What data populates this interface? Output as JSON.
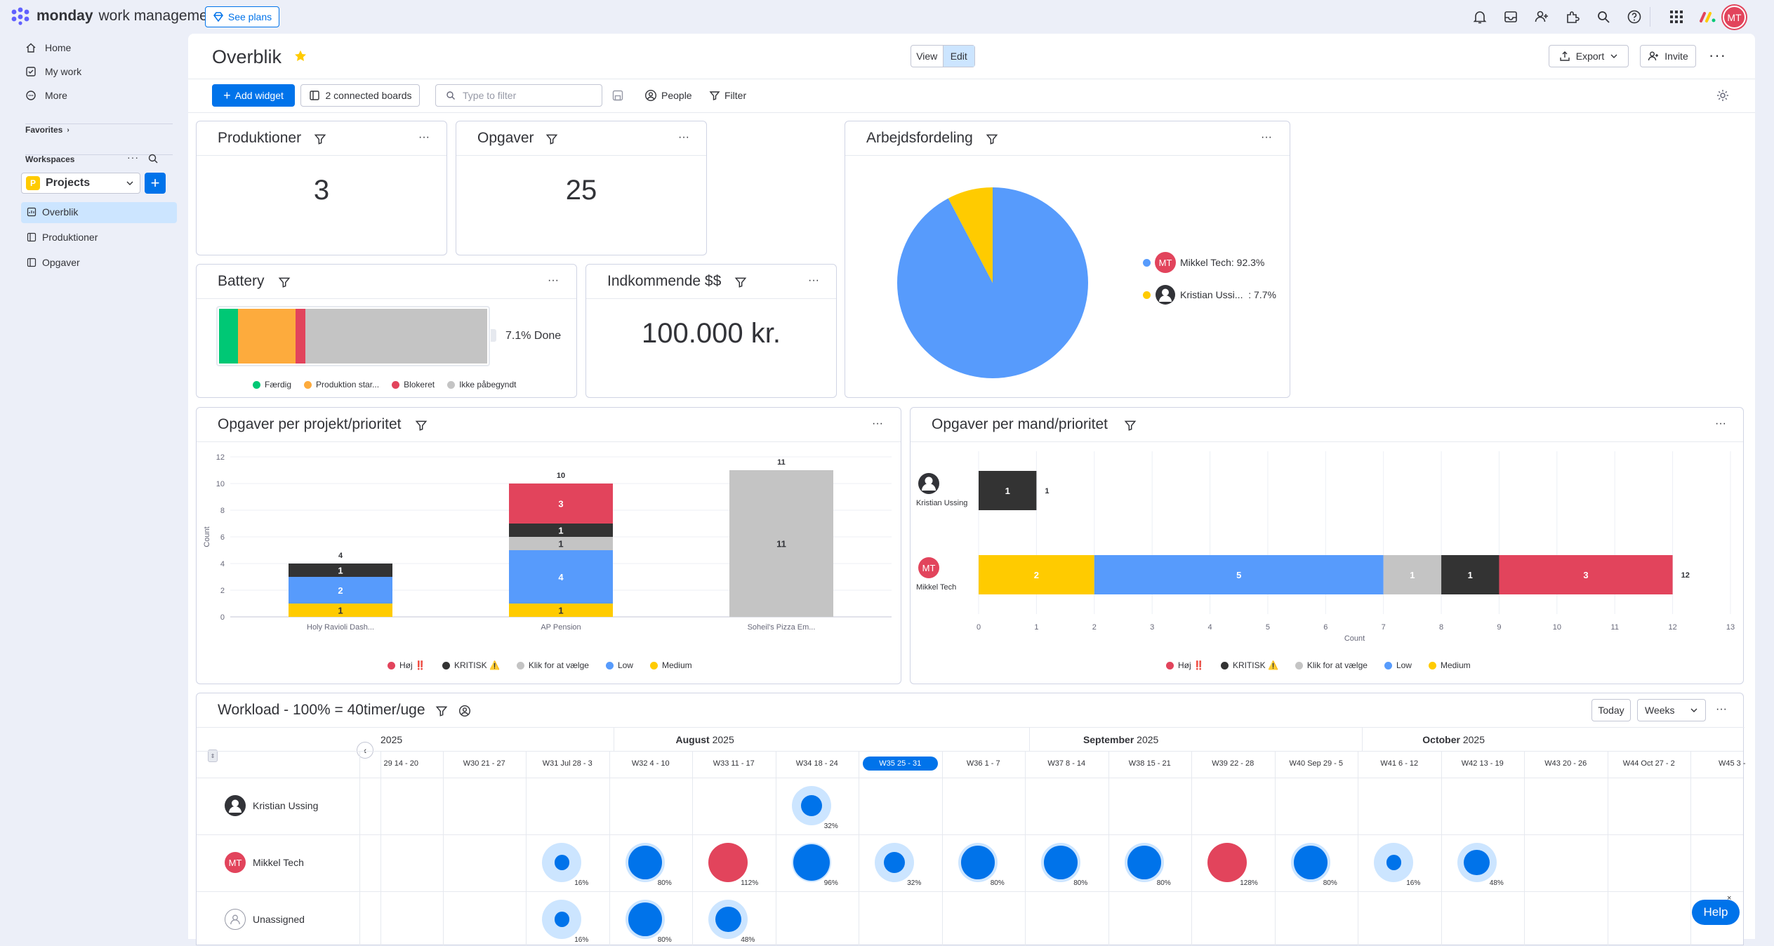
{
  "topbar": {
    "brand": "monday",
    "product": "work management",
    "see_plans": "See plans",
    "avatar_initials": "MT"
  },
  "sidebar": {
    "items": [
      {
        "label": "Home",
        "icon": "home-icon"
      },
      {
        "label": "My work",
        "icon": "checkbox-icon"
      },
      {
        "label": "More",
        "icon": "more-circle-icon"
      }
    ],
    "favorites": "Favorites",
    "workspaces": "Workspaces",
    "workspace_letter": "P",
    "workspace_name": "Projects",
    "boards": [
      {
        "label": "Overblik",
        "active": true
      },
      {
        "label": "Produktioner",
        "active": false
      },
      {
        "label": "Opgaver",
        "active": false
      }
    ]
  },
  "header": {
    "title": "Overblik",
    "view_label": "View",
    "edit_label": "Edit",
    "export_label": "Export",
    "invite_label": "Invite"
  },
  "toolbar": {
    "add_widget": "Add widget",
    "connected_boards": "2 connected boards",
    "filter_placeholder": "Type to filter",
    "people": "People",
    "filter": "Filter"
  },
  "widgets": {
    "produktioner": {
      "title": "Produktioner",
      "value": "3"
    },
    "opgaver": {
      "title": "Opgaver",
      "value": "25"
    },
    "arbejdsfordeling": {
      "title": "Arbejdsfordeling",
      "legend": [
        {
          "initials": "MT",
          "name": "Mikkel Tech: 92.3%",
          "color": "#579bfc"
        },
        {
          "initials": "",
          "name": "Kristian Ussi...  : 7.7%",
          "color": "#ffcb00"
        }
      ]
    },
    "battery": {
      "title": "Battery",
      "done_label": "7.1% Done",
      "segments": [
        {
          "label": "Færdig",
          "color": "#00c875",
          "fraction": 0.071
        },
        {
          "label": "Produktion star...",
          "color": "#fdab3d",
          "fraction": 0.214
        },
        {
          "label": "Blokeret",
          "color": "#e2445c",
          "fraction": 0.036
        },
        {
          "label": "Ikke påbegyndt",
          "color": "#c4c4c4",
          "fraction": 0.679
        }
      ]
    },
    "indkommende": {
      "title": "Indkommende $$",
      "value": "100.000 kr."
    },
    "per_projekt_title": "Opgaver per projekt/prioritet",
    "per_mand_title": "Opgaver per mand/prioritet",
    "priority_legend": [
      {
        "label": "Høj ‼️",
        "color": "#e2445c"
      },
      {
        "label": "KRITISK ⚠️",
        "color": "#333333"
      },
      {
        "label": "Klik for at vælge",
        "color": "#c4c4c4"
      },
      {
        "label": "Low",
        "color": "#579bfc"
      },
      {
        "label": "Medium",
        "color": "#ffcb00"
      }
    ],
    "workload": {
      "title": "Workload - 100% = 40timer/uge",
      "today": "Today",
      "weeks": "Weeks",
      "year_fragment": "2025",
      "months": [
        "August 2025",
        "September 2025",
        "October 2025"
      ],
      "weeks_list": [
        "29 14 - 20",
        "W30 21 - 27",
        "W31 Jul 28 - 3",
        "W32 4 - 10",
        "W33 11 - 17",
        "W34 18 - 24",
        "W35 25 - 31",
        "W36 1 - 7",
        "W37 8 - 14",
        "W38 15 - 21",
        "W39 22 - 28",
        "W40 Sep 29 - 5",
        "W41 6 - 12",
        "W42 13 - 19",
        "W43 20 - 26",
        "W44 Oct 27 - 2",
        "W45 3 -"
      ],
      "people": [
        {
          "name": "Kristian Ussing",
          "loads": [
            null,
            null,
            null,
            null,
            null,
            32,
            null,
            null,
            null,
            null,
            null,
            null,
            null,
            null,
            null,
            null,
            null
          ]
        },
        {
          "name": "Mikkel Tech",
          "loads": [
            null,
            null,
            16,
            80,
            112,
            96,
            32,
            80,
            80,
            80,
            128,
            80,
            16,
            48,
            null,
            null,
            null
          ]
        },
        {
          "name": "Unassigned",
          "loads": [
            null,
            null,
            16,
            80,
            48,
            null,
            null,
            null,
            null,
            null,
            null,
            null,
            null,
            null,
            null,
            null,
            null
          ]
        }
      ]
    }
  },
  "help": "Help",
  "chart_data": [
    {
      "type": "pie",
      "title": "Arbejdsfordeling",
      "categories": [
        "Mikkel Tech",
        "Kristian Ussing"
      ],
      "values": [
        92.3,
        7.7
      ],
      "colors": [
        "#579bfc",
        "#ffcb00"
      ]
    },
    {
      "type": "bar",
      "title": "Opgaver per projekt/prioritet",
      "ylabel": "Count",
      "ylim": [
        0,
        12
      ],
      "yticks": [
        0,
        2,
        4,
        6,
        8,
        10,
        12
      ],
      "categories": [
        "Holy Ravioli Dash...",
        "AP Pension",
        "Soheil's Pizza Em..."
      ],
      "totals": [
        4,
        10,
        11
      ],
      "series": [
        {
          "name": "Medium",
          "color": "#ffcb00",
          "values": [
            1,
            1,
            0
          ]
        },
        {
          "name": "Low",
          "color": "#579bfc",
          "values": [
            2,
            4,
            0
          ]
        },
        {
          "name": "Klik for at vælge",
          "color": "#c4c4c4",
          "values": [
            0,
            1,
            11
          ]
        },
        {
          "name": "KRITISK ⚠️",
          "color": "#333333",
          "values": [
            1,
            1,
            0
          ]
        },
        {
          "name": "Høj ‼️",
          "color": "#e2445c",
          "values": [
            0,
            3,
            0
          ]
        }
      ]
    },
    {
      "type": "bar",
      "orientation": "horizontal",
      "title": "Opgaver per mand/prioritet",
      "xlabel": "Count",
      "xlim": [
        0,
        13
      ],
      "xticks": [
        0,
        1,
        2,
        3,
        4,
        5,
        6,
        7,
        8,
        9,
        10,
        11,
        12,
        13
      ],
      "categories": [
        "Kristian Ussing",
        "Mikkel Tech"
      ],
      "totals": [
        1,
        12
      ],
      "series": [
        {
          "name": "Medium",
          "color": "#ffcb00",
          "values": [
            0,
            2
          ]
        },
        {
          "name": "Low",
          "color": "#579bfc",
          "values": [
            0,
            5
          ]
        },
        {
          "name": "Klik for at vælge",
          "color": "#c4c4c4",
          "values": [
            0,
            1
          ]
        },
        {
          "name": "KRITISK ⚠️",
          "color": "#333333",
          "values": [
            1,
            1
          ]
        },
        {
          "name": "Høj ‼️",
          "color": "#e2445c",
          "values": [
            0,
            3
          ]
        }
      ]
    }
  ]
}
